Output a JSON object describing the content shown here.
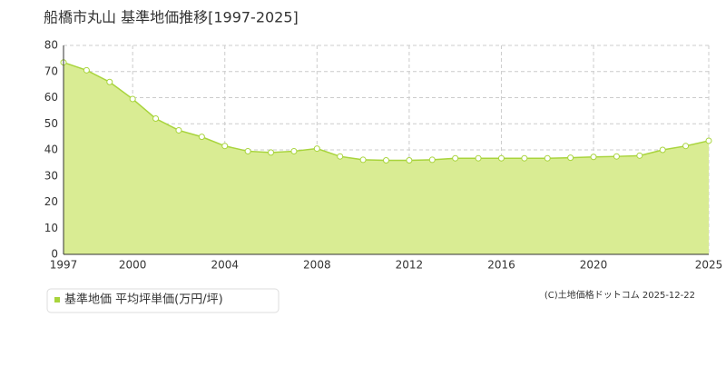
{
  "chart_data": {
    "type": "area",
    "title": "船橋市丸山 基準地価推移[1997-2025]",
    "x": [
      1997,
      1998,
      1999,
      2000,
      2001,
      2002,
      2003,
      2004,
      2005,
      2006,
      2007,
      2008,
      2009,
      2010,
      2011,
      2012,
      2013,
      2014,
      2015,
      2016,
      2017,
      2018,
      2019,
      2020,
      2021,
      2022,
      2023,
      2024,
      2025
    ],
    "series": [
      {
        "name": "基準地価 平均坪単価(万円/坪)",
        "color": "#a8d43c",
        "values": [
          73.5,
          70.5,
          66,
          59.5,
          52,
          47.5,
          45,
          41.5,
          39.5,
          39,
          39.5,
          40.5,
          37.5,
          36.2,
          36,
          36,
          36.2,
          36.8,
          36.8,
          36.8,
          36.8,
          36.8,
          37,
          37.3,
          37.5,
          37.8,
          40,
          41.5,
          43.5
        ]
      }
    ],
    "xlim": [
      1997,
      2025
    ],
    "xticks": [
      1997,
      2000,
      2004,
      2008,
      2012,
      2016,
      2020,
      2025
    ],
    "ylim": [
      0,
      80
    ],
    "yticks": [
      0,
      10,
      20,
      30,
      40,
      50,
      60,
      70,
      80
    ],
    "grid": true,
    "copyright": "(C)土地価格ドットコム 2025-12-22"
  }
}
